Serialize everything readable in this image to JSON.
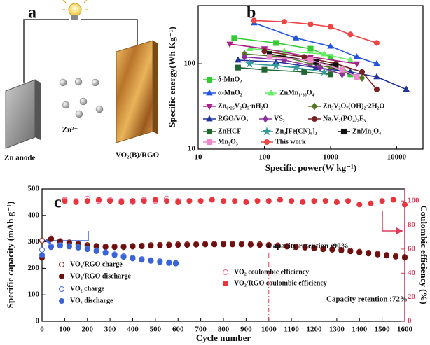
{
  "diagram": {
    "label": "a",
    "ion": "Zn²⁺",
    "anode": "Zn anode",
    "cathode": "VO₂(B)/RGO"
  },
  "chart_data": [
    {
      "type": "line",
      "label": "b",
      "xlabel": "Specific power(W kg⁻¹)",
      "ylabel": "Specific energy(Wh Kg⁻¹)",
      "xscale": "log",
      "yscale": "log",
      "xlim": [
        10,
        25000
      ],
      "ylim": [
        10,
        480
      ],
      "xticks": [
        10,
        100,
        1000,
        10000
      ],
      "yticks": [
        10,
        100
      ],
      "series": [
        {
          "name": "δ-MnO₂",
          "color": "#33cc33",
          "marker": "square",
          "x": [
            35,
            150,
            500,
            1000,
            2000
          ],
          "values": [
            200,
            175,
            150,
            120,
            75
          ]
        },
        {
          "name": "α-MnO₂",
          "color": "#2255dd",
          "marker": "triangle",
          "x": [
            70,
            300,
            1000,
            2500,
            5000
          ],
          "values": [
            300,
            200,
            160,
            120,
            100
          ]
        },
        {
          "name": "ZnMn₁.₈₆O₄",
          "color": "#66ee66",
          "marker": "triangle",
          "x": [
            60,
            200,
            800,
            2000
          ],
          "values": [
            150,
            140,
            130,
            110
          ]
        },
        {
          "name": "Zn₀.₂₅V₂O₅·nH₂O",
          "color": "#aa2288",
          "marker": "triangle-down",
          "x": [
            30,
            100,
            500,
            2500
          ],
          "values": [
            170,
            150,
            120,
            100
          ]
        },
        {
          "name": "Zn₃V₂O₇(OH)₂·2H₂O",
          "color": "#557722",
          "marker": "diamond",
          "x": [
            50,
            200,
            500,
            1000,
            3000
          ],
          "values": [
            130,
            120,
            100,
            90,
            68
          ]
        },
        {
          "name": "RGO/VO₂",
          "color": "#223399",
          "marker": "triangle",
          "x": [
            40,
            150,
            600,
            2000,
            5000,
            14000
          ],
          "values": [
            110,
            105,
            90,
            80,
            70,
            50
          ]
        },
        {
          "name": "VS₂",
          "color": "#883399",
          "marker": "diamond",
          "x": [
            50,
            200,
            700,
            1500
          ],
          "values": [
            120,
            110,
            90,
            75
          ]
        },
        {
          "name": "Na₃V₂(PO₄)₂F₃",
          "color": "#772222",
          "marker": "circle",
          "x": [
            100,
            400,
            1200,
            3000,
            5000
          ],
          "values": [
            140,
            120,
            100,
            80,
            50
          ]
        },
        {
          "name": "ZnHCF",
          "color": "#226633",
          "marker": "square",
          "x": [
            40,
            100,
            400,
            1000
          ],
          "values": [
            90,
            85,
            80,
            75
          ]
        },
        {
          "name": "Zn₃[Fe(CN)₆]₂",
          "color": "#339999",
          "marker": "star",
          "x": [
            60,
            150,
            300,
            800
          ],
          "values": [
            100,
            95,
            90,
            80
          ]
        },
        {
          "name": "ZnMn₂O₄",
          "color": "#111111",
          "marker": "square",
          "x": [
            120,
            600,
            1200
          ],
          "values": [
            130,
            105,
            95
          ]
        },
        {
          "name": "Mn₂O₃",
          "color": "#ee88cc",
          "marker": "square",
          "x": [
            120,
            500,
            1500,
            2500
          ],
          "values": [
            120,
            110,
            85,
            70
          ]
        },
        {
          "name": "This work",
          "color": "#ee4444",
          "marker": "circle",
          "x": [
            70,
            200,
            500,
            1000,
            2000,
            5000
          ],
          "values": [
            320,
            310,
            290,
            270,
            220,
            175
          ]
        }
      ]
    },
    {
      "type": "scatter",
      "label": "c",
      "xlabel": "Cycle number",
      "ylabel": "Specific capacity (mAh g⁻¹)",
      "y2label": "Coulombic efficiency (%)",
      "xlim": [
        0,
        1600
      ],
      "xticks": [
        0,
        100,
        200,
        300,
        400,
        500,
        600,
        700,
        800,
        900,
        1000,
        1100,
        1200,
        1300,
        1400,
        1500,
        1600
      ],
      "ylim": [
        0,
        500
      ],
      "yticks": [
        0,
        100,
        200,
        300,
        400,
        500
      ],
      "y2lim": [
        0,
        110
      ],
      "y2ticks": [
        0,
        20,
        40,
        60,
        80,
        100
      ],
      "y2color": "#e03a5c",
      "annotations": [
        {
          "text": "Capacity retention :90%",
          "x": 1000
        },
        {
          "text": "Capacity retention :72%"
        }
      ],
      "series": [
        {
          "name": "VO₂/RGO charge",
          "color": "#8b1c1c",
          "filled": false,
          "x": [
            0,
            40,
            80,
            120,
            160,
            200,
            240,
            280,
            320,
            360,
            400,
            440,
            480,
            520,
            560,
            600,
            640,
            680,
            720,
            760,
            800,
            840,
            880,
            920,
            960,
            1000,
            1040,
            1080,
            1120,
            1160,
            1200,
            1240,
            1280,
            1320,
            1360,
            1400,
            1440,
            1480,
            1520,
            1560,
            1600
          ],
          "values": [
            305,
            313,
            303,
            298,
            293,
            288,
            285,
            283,
            283,
            283,
            285,
            286,
            288,
            289,
            290,
            291,
            291,
            292,
            293,
            293,
            293,
            293,
            293,
            292,
            291,
            289,
            287,
            285,
            283,
            281,
            278,
            275,
            273,
            270,
            267,
            263,
            259,
            255,
            251,
            247,
            243
          ]
        },
        {
          "name": "VO₂/RGO discharge",
          "color": "#6e1010",
          "filled": true,
          "x": [
            0,
            40,
            80,
            120,
            160,
            200,
            240,
            280,
            320,
            360,
            400,
            440,
            480,
            520,
            560,
            600,
            640,
            680,
            720,
            760,
            800,
            840,
            880,
            920,
            960,
            1000,
            1040,
            1080,
            1120,
            1160,
            1200,
            1240,
            1280,
            1320,
            1360,
            1400,
            1440,
            1480,
            1520,
            1560,
            1600
          ],
          "values": [
            240,
            310,
            300,
            295,
            290,
            285,
            282,
            280,
            280,
            280,
            282,
            283,
            285,
            286,
            287,
            288,
            288,
            289,
            290,
            290,
            290,
            290,
            290,
            289,
            288,
            286,
            284,
            282,
            280,
            278,
            275,
            272,
            270,
            267,
            264,
            260,
            256,
            252,
            248,
            244,
            240
          ]
        },
        {
          "name": "VO₂ charge",
          "color": "#4a6fe3",
          "filled": false,
          "x": [
            0,
            40,
            80,
            120,
            160,
            200,
            240,
            280,
            320,
            360,
            400,
            440,
            480,
            520,
            560,
            590
          ],
          "values": [
            270,
            284,
            288,
            285,
            281,
            275,
            268,
            261,
            253,
            246,
            240,
            235,
            231,
            227,
            223,
            221
          ]
        },
        {
          "name": "VO₂ discharge",
          "color": "#3a63d8",
          "filled": true,
          "x": [
            0,
            40,
            80,
            120,
            160,
            200,
            240,
            280,
            320,
            360,
            400,
            440,
            480,
            520,
            560,
            590
          ],
          "values": [
            250,
            280,
            285,
            282,
            278,
            272,
            265,
            258,
            250,
            243,
            237,
            232,
            228,
            224,
            220,
            218
          ]
        },
        {
          "name": "VO₂ coulombic efficiency",
          "color": "#f06aa0",
          "filled": false,
          "axis": "y2",
          "x": [
            100,
            150,
            200,
            250,
            300,
            350,
            400,
            450,
            500,
            550,
            600
          ],
          "values": [
            101,
            100,
            102,
            100,
            101,
            100,
            99,
            101,
            100,
            102,
            100
          ]
        },
        {
          "name": "VO₂/RGO coulombic efficiency",
          "color": "#e8343c",
          "filled": true,
          "axis": "y2",
          "x": [
            100,
            150,
            200,
            250,
            300,
            350,
            400,
            450,
            500,
            550,
            600,
            650,
            700,
            750,
            800,
            850,
            900,
            950,
            1000,
            1050,
            1100,
            1150,
            1200,
            1250,
            1300,
            1350,
            1400,
            1450,
            1500,
            1550,
            1600
          ],
          "values": [
            100,
            99,
            100,
            101,
            100,
            99,
            100,
            100,
            101,
            100,
            99,
            100,
            100,
            101,
            100,
            100,
            99,
            100,
            100,
            101,
            100,
            99,
            100,
            100,
            99,
            100,
            97,
            98,
            100,
            101,
            97
          ]
        }
      ]
    }
  ]
}
